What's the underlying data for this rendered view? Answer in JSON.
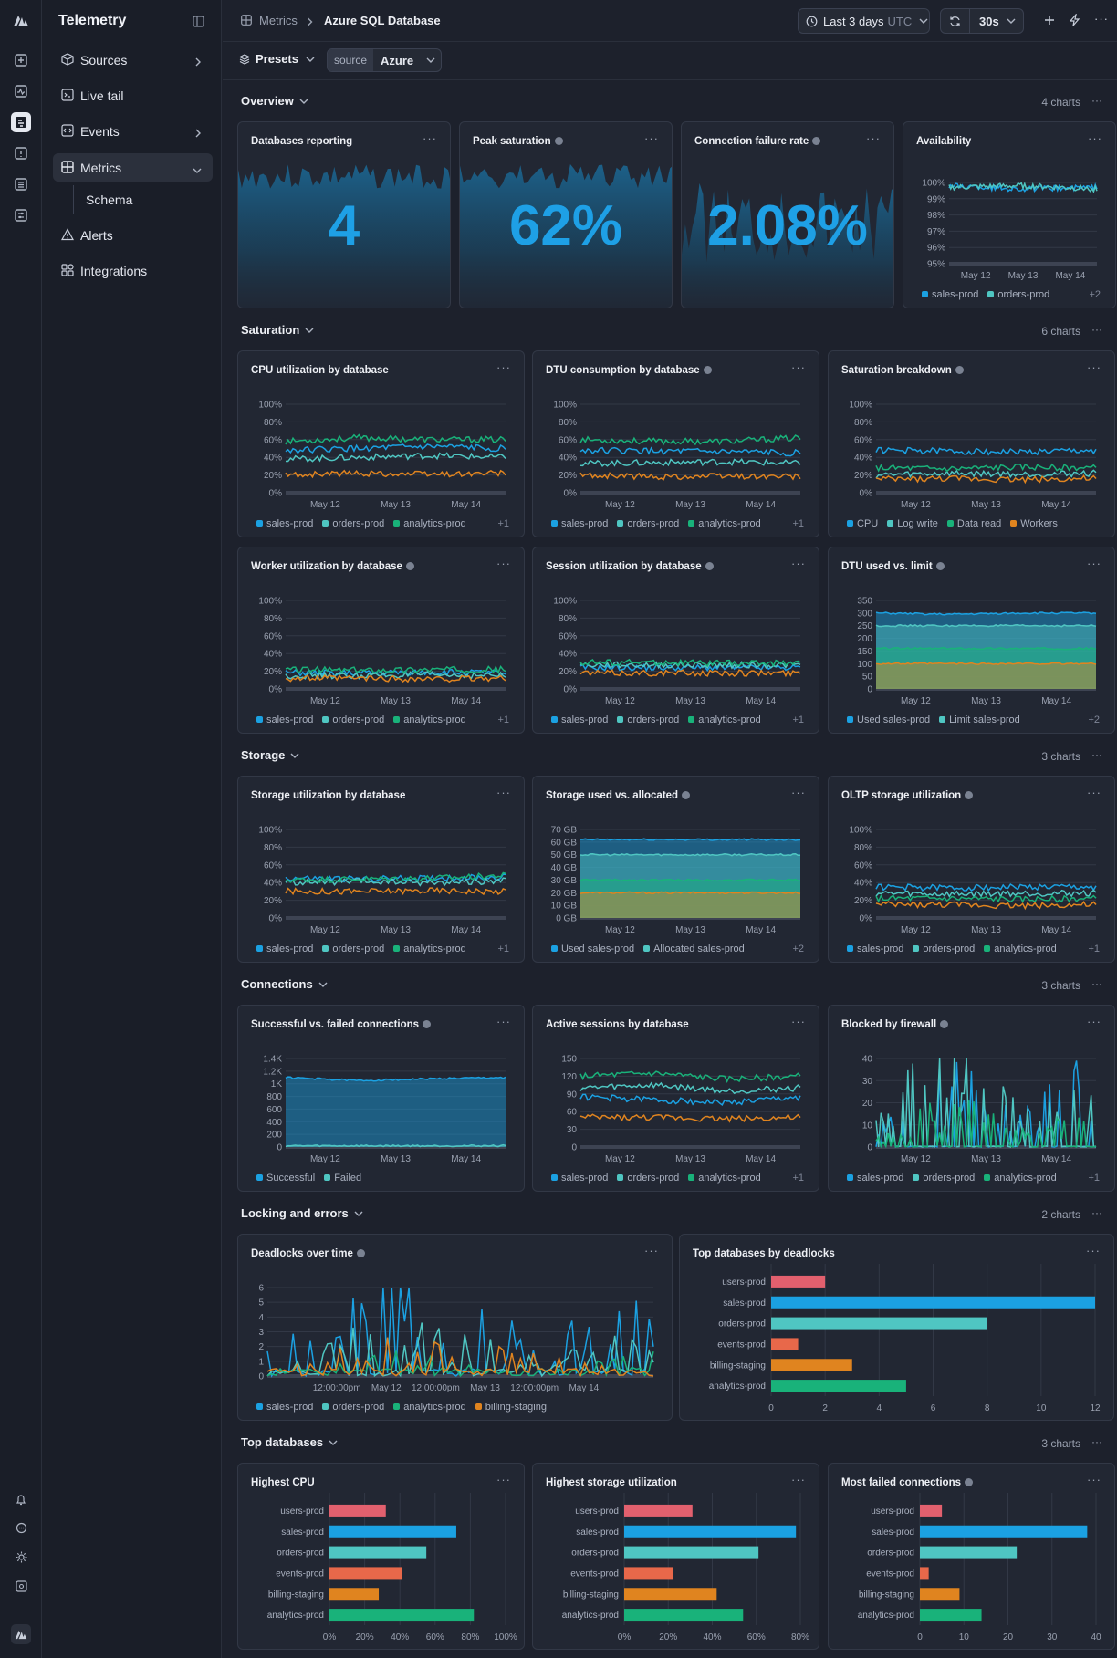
{
  "app": {
    "title": "Telemetry"
  },
  "nav": {
    "items": [
      {
        "label": "Sources",
        "icon": "cube-icon",
        "chevron": "right"
      },
      {
        "label": "Live tail",
        "icon": "terminal-icon"
      },
      {
        "label": "Events",
        "icon": "code-icon",
        "chevron": "right"
      },
      {
        "label": "Metrics",
        "icon": "grid-icon",
        "chevron": "down",
        "active": true
      },
      {
        "label": "Schema",
        "sub": true
      },
      {
        "label": "Alerts",
        "icon": "warning-icon"
      },
      {
        "label": "Integrations",
        "icon": "apps-icon"
      }
    ]
  },
  "breadcrumb": {
    "parent": "Metrics",
    "current": "Azure SQL Database"
  },
  "toolbar": {
    "time_range": "Last 3 days",
    "timezone": "UTC",
    "refresh": "30s"
  },
  "filters": {
    "presets": "Presets",
    "source_key": "source",
    "source_value": "Azure"
  },
  "colors": {
    "blue": "#1ba1e2",
    "teal": "#4fc6c2",
    "green": "#19b27a",
    "orange": "#e0841f",
    "red": "#e2606e",
    "salmon": "#e8684a"
  },
  "sections": [
    {
      "title": "Overview",
      "count": "4 charts"
    },
    {
      "title": "Saturation",
      "count": "6 charts"
    },
    {
      "title": "Storage",
      "count": "3 charts"
    },
    {
      "title": "Connections",
      "count": "3 charts"
    },
    {
      "title": "Locking and errors",
      "count": "2 charts"
    },
    {
      "title": "Top databases",
      "count": "3 charts"
    }
  ],
  "stats": [
    {
      "title": "Databases reporting",
      "value": "4",
      "info": false
    },
    {
      "title": "Peak saturation",
      "value": "62%",
      "info": true
    },
    {
      "title": "Connection failure rate",
      "value": "2.08%",
      "info": true
    }
  ],
  "cards": {
    "availability": {
      "title": "Availability",
      "legend": [
        "sales-prod",
        "orders-prod"
      ],
      "more": "+2"
    },
    "cpu": {
      "title": "CPU utilization by database",
      "legend": [
        "sales-prod",
        "orders-prod",
        "analytics-prod"
      ],
      "more": "+1"
    },
    "dtu": {
      "title": "DTU consumption by database",
      "legend": [
        "sales-prod",
        "orders-prod",
        "analytics-prod"
      ],
      "more": "+1"
    },
    "satb": {
      "title": "Saturation breakdown",
      "legend": [
        "CPU",
        "Log write",
        "Data read",
        "Workers"
      ],
      "more": ""
    },
    "worker": {
      "title": "Worker utilization by database",
      "legend": [
        "sales-prod",
        "orders-prod",
        "analytics-prod"
      ],
      "more": "+1"
    },
    "session": {
      "title": "Session utilization by database",
      "legend": [
        "sales-prod",
        "orders-prod",
        "analytics-prod"
      ],
      "more": "+1"
    },
    "dtulim": {
      "title": "DTU used vs. limit",
      "legend": [
        "Used sales-prod",
        "Limit sales-prod"
      ],
      "more": "+2"
    },
    "storutil": {
      "title": "Storage utilization by database",
      "legend": [
        "sales-prod",
        "orders-prod",
        "analytics-prod"
      ],
      "more": "+1"
    },
    "storalloc": {
      "title": "Storage used vs. allocated",
      "legend": [
        "Used sales-prod",
        "Allocated sales-prod"
      ],
      "more": "+2"
    },
    "oltp": {
      "title": "OLTP storage utilization",
      "legend": [
        "sales-prod",
        "orders-prod",
        "analytics-prod"
      ],
      "more": "+1"
    },
    "conn": {
      "title": "Successful vs. failed connections",
      "legend": [
        "Successful",
        "Failed"
      ],
      "more": ""
    },
    "sess": {
      "title": "Active sessions by database",
      "legend": [
        "sales-prod",
        "orders-prod",
        "analytics-prod"
      ],
      "more": "+1"
    },
    "fw": {
      "title": "Blocked by firewall",
      "legend": [
        "sales-prod",
        "orders-prod",
        "analytics-prod"
      ],
      "more": "+1"
    },
    "dead": {
      "title": "Deadlocks over time",
      "legend": [
        "sales-prod",
        "orders-prod",
        "analytics-prod",
        "billing-staging"
      ],
      "more": ""
    },
    "topdead": {
      "title": "Top databases by deadlocks"
    },
    "hcpu": {
      "title": "Highest CPU"
    },
    "hstor": {
      "title": "Highest storage utilization"
    },
    "hfail": {
      "title": "Most failed connections"
    }
  },
  "chart_data": [
    {
      "id": "availability",
      "type": "line",
      "ylabel_ticks": [
        "95%",
        "96%",
        "97%",
        "98%",
        "99%",
        "100%"
      ],
      "x_ticks": [
        "May 12",
        "May 13",
        "May 14"
      ],
      "ylim": [
        95,
        100
      ],
      "series": [
        {
          "name": "sales-prod",
          "values": [
            99.8,
            99.6,
            99.7
          ]
        },
        {
          "name": "orders-prod",
          "values": [
            99.7,
            99.8,
            99.6
          ]
        }
      ]
    },
    {
      "id": "cpu",
      "type": "line",
      "y_ticks": [
        "0%",
        "20%",
        "40%",
        "60%",
        "80%",
        "100%"
      ],
      "x_ticks": [
        "May 12",
        "May 13",
        "May 14"
      ],
      "ylim": [
        0,
        100
      ],
      "series": [
        {
          "name": "sales-prod",
          "values": [
            48,
            50,
            52,
            50
          ]
        },
        {
          "name": "orders-prod",
          "values": [
            38,
            40,
            42,
            40
          ]
        },
        {
          "name": "analytics-prod",
          "values": [
            58,
            62,
            60,
            60
          ]
        },
        {
          "name": "",
          "values": [
            20,
            22,
            21,
            22
          ]
        }
      ]
    },
    {
      "id": "dtu",
      "type": "line",
      "y_ticks": [
        "0%",
        "20%",
        "40%",
        "60%",
        "80%",
        "100%"
      ],
      "x_ticks": [
        "May 12",
        "May 13",
        "May 14"
      ],
      "ylim": [
        0,
        100
      ],
      "series": [
        {
          "name": "sales-prod",
          "values": [
            48,
            47,
            46,
            45
          ]
        },
        {
          "name": "orders-prod",
          "values": [
            33,
            34,
            35,
            33
          ]
        },
        {
          "name": "analytics-prod",
          "values": [
            60,
            58,
            58,
            62
          ]
        },
        {
          "name": "",
          "values": [
            20,
            18,
            19,
            18
          ]
        }
      ]
    },
    {
      "id": "satb",
      "type": "line",
      "y_ticks": [
        "0%",
        "20%",
        "40%",
        "60%",
        "80%",
        "100%"
      ],
      "x_ticks": [
        "May 12",
        "May 13",
        "May 14"
      ],
      "ylim": [
        0,
        100
      ],
      "series": [
        {
          "name": "CPU",
          "values": [
            48,
            47,
            46,
            48
          ]
        },
        {
          "name": "Log write",
          "values": [
            20,
            22,
            21,
            22
          ]
        },
        {
          "name": "Data read",
          "values": [
            28,
            27,
            29,
            28
          ]
        },
        {
          "name": "Workers",
          "values": [
            15,
            16,
            15,
            16
          ]
        }
      ]
    },
    {
      "id": "worker",
      "type": "line",
      "y_ticks": [
        "0%",
        "20%",
        "40%",
        "60%",
        "80%",
        "100%"
      ],
      "x_ticks": [
        "May 12",
        "May 13",
        "May 14"
      ],
      "ylim": [
        0,
        100
      ],
      "series": [
        {
          "name": "sales-prod",
          "values": [
            18,
            18,
            19,
            18
          ]
        },
        {
          "name": "orders-prod",
          "values": [
            15,
            15,
            16,
            15
          ]
        },
        {
          "name": "analytics-prod",
          "values": [
            22,
            21,
            22,
            22
          ]
        },
        {
          "name": "",
          "values": [
            12,
            12,
            11,
            12
          ]
        }
      ]
    },
    {
      "id": "session",
      "type": "line",
      "y_ticks": [
        "0%",
        "20%",
        "40%",
        "60%",
        "80%",
        "100%"
      ],
      "x_ticks": [
        "May 12",
        "May 13",
        "May 14"
      ],
      "ylim": [
        0,
        100
      ],
      "series": [
        {
          "name": "sales-prod",
          "values": [
            24,
            24,
            24,
            24
          ]
        },
        {
          "name": "orders-prod",
          "values": [
            27,
            27,
            27,
            27
          ]
        },
        {
          "name": "analytics-prod",
          "values": [
            30,
            30,
            29,
            30
          ]
        },
        {
          "name": "",
          "values": [
            18,
            18,
            18,
            18
          ]
        }
      ]
    },
    {
      "id": "dtulim",
      "type": "area",
      "y_ticks": [
        "0",
        "50",
        "100",
        "150",
        "200",
        "250",
        "300",
        "350"
      ],
      "x_ticks": [
        "May 12",
        "May 13",
        "May 14"
      ],
      "ylim": [
        0,
        350
      ],
      "series": [
        {
          "name": "Used sales-prod",
          "values": [
            300,
            295,
            300,
            300
          ]
        },
        {
          "name": "Limit sales-prod",
          "values": [
            250,
            250,
            250,
            250
          ]
        },
        {
          "name": "",
          "values": [
            160,
            160,
            160,
            160
          ]
        },
        {
          "name": "",
          "values": [
            100,
            100,
            100,
            100
          ]
        }
      ]
    },
    {
      "id": "storutil",
      "type": "line",
      "y_ticks": [
        "0%",
        "20%",
        "40%",
        "60%",
        "80%",
        "100%"
      ],
      "x_ticks": [
        "May 12",
        "May 13",
        "May 14"
      ],
      "ylim": [
        0,
        100
      ],
      "series": [
        {
          "name": "sales-prod",
          "values": [
            45,
            44,
            45,
            46
          ]
        },
        {
          "name": "orders-prod",
          "values": [
            40,
            41,
            40,
            42
          ]
        },
        {
          "name": "analytics-prod",
          "values": [
            43,
            44,
            45,
            48
          ]
        },
        {
          "name": "",
          "values": [
            30,
            30,
            31,
            30
          ]
        }
      ]
    },
    {
      "id": "storalloc",
      "type": "area",
      "y_ticks": [
        "0 GB",
        "10 GB",
        "20 GB",
        "30 GB",
        "40 GB",
        "50 GB",
        "60 GB",
        "70 GB"
      ],
      "x_ticks": [
        "May 12",
        "May 13",
        "May 14"
      ],
      "ylim": [
        0,
        70
      ],
      "series": [
        {
          "name": "Used sales-prod",
          "values": [
            62,
            62,
            62,
            62
          ]
        },
        {
          "name": "Allocated sales-prod",
          "values": [
            50,
            50,
            50,
            50
          ]
        },
        {
          "name": "",
          "values": [
            30,
            30,
            30,
            30
          ]
        },
        {
          "name": "",
          "values": [
            20,
            20,
            20,
            20
          ]
        }
      ]
    },
    {
      "id": "oltp",
      "type": "line",
      "y_ticks": [
        "0%",
        "20%",
        "40%",
        "60%",
        "80%",
        "100%"
      ],
      "x_ticks": [
        "May 12",
        "May 13",
        "May 14"
      ],
      "ylim": [
        0,
        100
      ],
      "series": [
        {
          "name": "sales-prod",
          "values": [
            35,
            34,
            35,
            35
          ]
        },
        {
          "name": "orders-prod",
          "values": [
            28,
            27,
            28,
            28
          ]
        },
        {
          "name": "analytics-prod",
          "values": [
            22,
            22,
            21,
            22
          ]
        },
        {
          "name": "",
          "values": [
            15,
            15,
            14,
            15
          ]
        }
      ]
    },
    {
      "id": "conn",
      "type": "area",
      "y_ticks": [
        "0",
        "200",
        "400",
        "600",
        "800",
        "1K",
        "1.2K",
        "1.4K"
      ],
      "x_ticks": [
        "May 12",
        "May 13",
        "May 14"
      ],
      "ylim": [
        0,
        1400
      ],
      "series": [
        {
          "name": "Successful",
          "values": [
            1100,
            1050,
            1080,
            1100
          ]
        },
        {
          "name": "Failed",
          "values": [
            20,
            20,
            20,
            20
          ]
        }
      ]
    },
    {
      "id": "sess",
      "type": "line",
      "y_ticks": [
        "0",
        "30",
        "60",
        "90",
        "120",
        "150"
      ],
      "x_ticks": [
        "May 12",
        "May 13",
        "May 14"
      ],
      "ylim": [
        0,
        150
      ],
      "series": [
        {
          "name": "sales-prod",
          "values": [
            85,
            80,
            75,
            85
          ]
        },
        {
          "name": "orders-prod",
          "values": [
            100,
            105,
            95,
            100
          ]
        },
        {
          "name": "analytics-prod",
          "values": [
            120,
            125,
            115,
            120
          ]
        },
        {
          "name": "",
          "values": [
            50,
            50,
            48,
            50
          ]
        }
      ]
    },
    {
      "id": "fw",
      "type": "line",
      "y_ticks": [
        "0",
        "10",
        "20",
        "30",
        "40"
      ],
      "x_ticks": [
        "May 12",
        "May 13",
        "May 14"
      ],
      "ylim": [
        0,
        40
      ],
      "series": [
        {
          "name": "sales-prod",
          "values": [
            5,
            25,
            10,
            30
          ]
        },
        {
          "name": "orders-prod",
          "values": [
            8,
            35,
            12,
            20
          ]
        },
        {
          "name": "analytics-prod",
          "values": [
            3,
            15,
            5,
            10
          ]
        }
      ]
    },
    {
      "id": "dead",
      "type": "line",
      "y_ticks": [
        "0",
        "1",
        "2",
        "3",
        "4",
        "5",
        "6"
      ],
      "x_ticks": [
        "12:00:00pm",
        "May 12",
        "12:00:00pm",
        "May 13",
        "12:00:00pm",
        "May 14"
      ],
      "ylim": [
        0,
        6
      ],
      "series": [
        {
          "name": "sales-prod",
          "values": [
            1,
            4,
            2,
            3
          ]
        },
        {
          "name": "orders-prod",
          "values": [
            0,
            3,
            1,
            2
          ]
        },
        {
          "name": "analytics-prod",
          "values": [
            0,
            1,
            0,
            1
          ]
        },
        {
          "name": "billing-staging",
          "values": [
            0,
            2,
            1,
            0
          ]
        }
      ]
    },
    {
      "id": "topdead",
      "type": "bar",
      "categories": [
        "users-prod",
        "sales-prod",
        "orders-prod",
        "events-prod",
        "billing-staging",
        "analytics-prod"
      ],
      "values": [
        2,
        12,
        8,
        1,
        3,
        5
      ],
      "x_ticks": [
        "0",
        "2",
        "4",
        "6",
        "8",
        "10",
        "12"
      ],
      "xlim": [
        0,
        12
      ]
    },
    {
      "id": "hcpu",
      "type": "bar",
      "categories": [
        "users-prod",
        "sales-prod",
        "orders-prod",
        "events-prod",
        "billing-staging",
        "analytics-prod"
      ],
      "values": [
        32,
        72,
        55,
        41,
        28,
        82
      ],
      "x_ticks": [
        "0%",
        "20%",
        "40%",
        "60%",
        "80%",
        "100%"
      ],
      "xlim": [
        0,
        100
      ]
    },
    {
      "id": "hstor",
      "type": "bar",
      "categories": [
        "users-prod",
        "sales-prod",
        "orders-prod",
        "events-prod",
        "billing-staging",
        "analytics-prod"
      ],
      "values": [
        31,
        78,
        61,
        22,
        42,
        54
      ],
      "x_ticks": [
        "0%",
        "20%",
        "40%",
        "60%",
        "80%"
      ],
      "xlim": [
        0,
        80
      ]
    },
    {
      "id": "hfail",
      "type": "bar",
      "categories": [
        "users-prod",
        "sales-prod",
        "orders-prod",
        "events-prod",
        "billing-staging",
        "analytics-prod"
      ],
      "values": [
        5,
        38,
        22,
        2,
        9,
        14
      ],
      "x_ticks": [
        "0",
        "10",
        "20",
        "30",
        "40"
      ],
      "xlim": [
        0,
        40
      ]
    }
  ]
}
